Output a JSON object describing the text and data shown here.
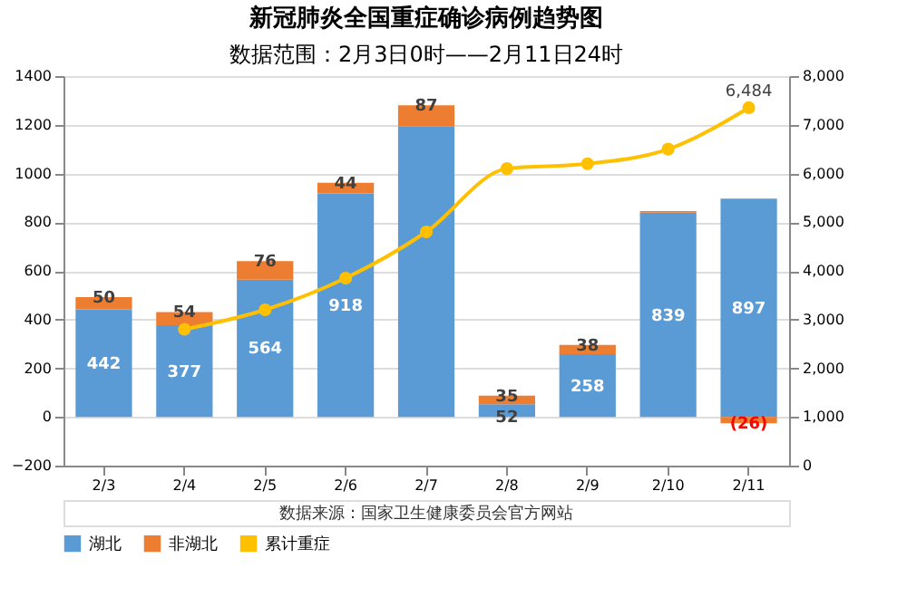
{
  "chart_data": {
    "type": "bar",
    "stacked": true,
    "title": "新冠肺炎全国重症确诊病例趋势图",
    "subtitle": "数据范围：2月3日0时——2月11日24时",
    "categories": [
      "2/3",
      "2/4",
      "2/5",
      "2/6",
      "2/7",
      "2/8",
      "2/9",
      "2/10",
      "2/11"
    ],
    "series": [
      {
        "name": "湖北",
        "color": "#5b9bd5",
        "values": [
          442,
          377,
          564,
          918,
          1193,
          52,
          258,
          839,
          897
        ],
        "value_labels": [
          "442",
          "377",
          "564",
          "918",
          null,
          "52",
          "258",
          "839",
          "897"
        ]
      },
      {
        "name": "非湖北",
        "color": "#ed7d31",
        "values": [
          50,
          54,
          76,
          44,
          87,
          35,
          38,
          7,
          -26
        ],
        "value_labels": [
          "50",
          "54",
          "76",
          "44",
          "87",
          "35",
          "38",
          null,
          "(26)"
        ]
      },
      {
        "name": "累计重症",
        "type": "line",
        "axis": "y2",
        "color": "#ffc000",
        "marker": "circle",
        "values": [
          null,
          2800,
          3200,
          3850,
          4800,
          6100,
          6200,
          6500,
          7350
        ]
      }
    ],
    "ylim": [
      -200,
      1400
    ],
    "yticks": [
      -200,
      0,
      200,
      400,
      600,
      800,
      1000,
      1200,
      1400
    ],
    "y2lim": [
      0,
      8000
    ],
    "y2ticks": [
      {
        "value": 0,
        "label": "0"
      },
      {
        "value": 1000,
        "label": "1,000"
      },
      {
        "value": 2000,
        "label": "2,000"
      },
      {
        "value": 3000,
        "label": "3,000"
      },
      {
        "value": 4000,
        "label": "4,000"
      },
      {
        "value": 5000,
        "label": "5,000"
      },
      {
        "value": 6000,
        "label": "6,000"
      },
      {
        "value": 7000,
        "label": "7,000"
      },
      {
        "value": 8000,
        "label": "8,000"
      }
    ],
    "grid": "y",
    "legend": "bottom",
    "annotations": [
      "6,484",
      "数据来源：国家卫生健康委员会官方网站"
    ]
  }
}
